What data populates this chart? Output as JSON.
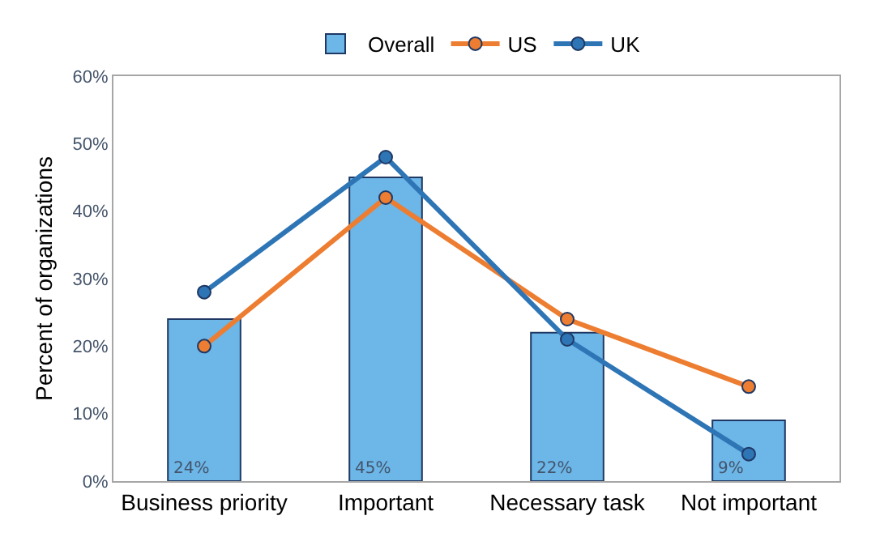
{
  "chart_data": {
    "type": "bar",
    "ylabel": "Percent of organizations",
    "categories": [
      "Business priority",
      "Important",
      "Necessary task",
      "Not important"
    ],
    "series": [
      {
        "name": "Overall",
        "color": "#6cb6e8",
        "values": [
          24,
          45,
          22,
          9
        ],
        "value_labels": [
          "24%",
          "45%",
          "22%",
          "9%"
        ]
      },
      {
        "name": "US",
        "type": "line",
        "color": "#ed7d31",
        "values": [
          20,
          42,
          24,
          14
        ]
      },
      {
        "name": "UK",
        "type": "line",
        "color": "#2e75b6",
        "values": [
          28,
          48,
          21,
          4
        ]
      }
    ],
    "ylim": [
      0,
      60
    ],
    "yticks": [
      {
        "value": 0,
        "label": "0%"
      },
      {
        "value": 10,
        "label": "10%"
      },
      {
        "value": 20,
        "label": "20%"
      },
      {
        "value": 30,
        "label": "30%"
      },
      {
        "value": 40,
        "label": "40%"
      },
      {
        "value": 50,
        "label": "50%"
      },
      {
        "value": 60,
        "label": "60%"
      }
    ],
    "grid": false,
    "legend": "top",
    "marker": "circle"
  }
}
